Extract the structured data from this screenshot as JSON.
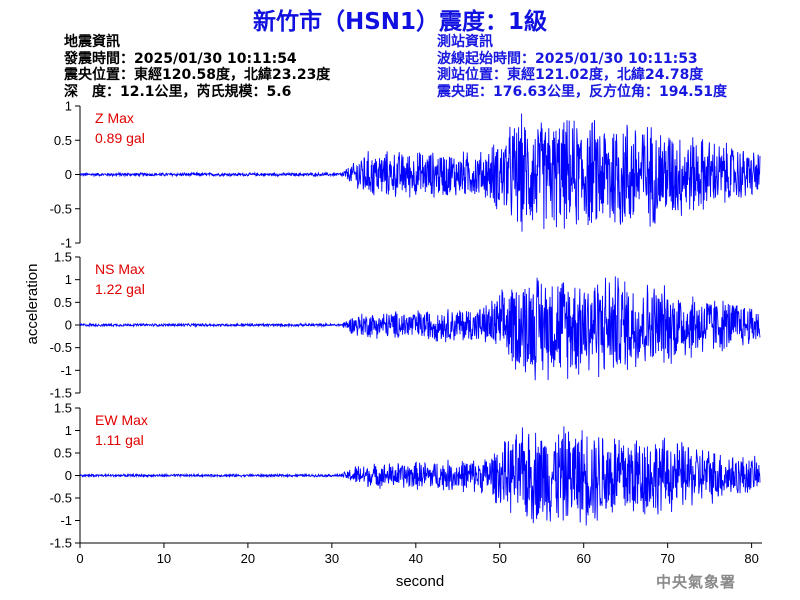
{
  "title": "新竹市（HSN1）震度：1級",
  "earthquake": {
    "heading": "地震資訊",
    "time": "發震時間：2025/01/30 10:11:54",
    "epicenter": "震央位置：東經120.58度，北緯23.23度",
    "depth_magnitude": "深　度：12.1公里，芮氏規模：5.6"
  },
  "station": {
    "heading": "測站資訊",
    "wave_start": "波線起始時間：2025/01/30 10:11:53",
    "location": "測站位置：東經121.02度，北緯24.78度",
    "distance_azimuth": "震央距：176.63公里，反方位角：194.51度"
  },
  "watermark": "中央氣象署",
  "colors": {
    "trace": "#0000ff",
    "label": "#e00000",
    "title": "#1010e0"
  },
  "chart_data": {
    "type": "line",
    "xlabel": "second",
    "ylabel": "acceleration",
    "xlim": [
      0,
      81
    ],
    "xticks": [
      0,
      10,
      20,
      30,
      40,
      50,
      60,
      70,
      80
    ],
    "panels": [
      {
        "name": "Z Max",
        "max_text": "0.89 gal",
        "ylim": [
          -1,
          1
        ],
        "yticks": [
          1,
          0.5,
          0,
          -0.5,
          -1
        ],
        "peak": 0.89
      },
      {
        "name": "NS Max",
        "max_text": "1.22 gal",
        "ylim": [
          -1.5,
          1.5
        ],
        "yticks": [
          1.5,
          1,
          0.5,
          0,
          -0.5,
          -1,
          -1.5
        ],
        "peak": 1.22
      },
      {
        "name": "EW Max",
        "max_text": "1.11 gal",
        "ylim": [
          -1.5,
          1.5
        ],
        "yticks": [
          1.5,
          1,
          0.5,
          0,
          -0.5,
          -1,
          -1.5
        ],
        "peak": 1.11
      }
    ]
  }
}
